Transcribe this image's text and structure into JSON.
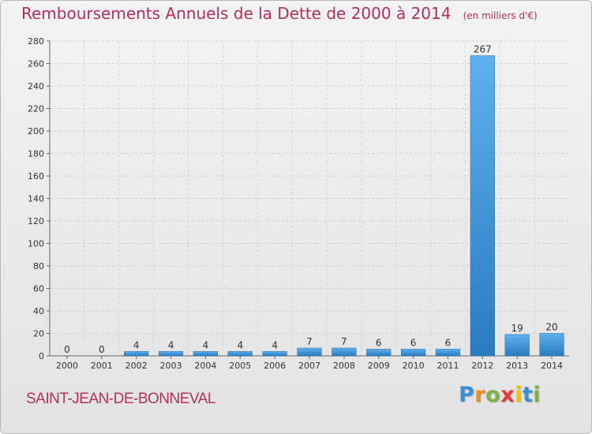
{
  "header": {
    "title": "Remboursements Annuels de la Dette de 2000 à 2014",
    "unit": "(en milliers d'€)"
  },
  "footer": {
    "commune": "SAINT-JEAN-DE-BONNEVAL",
    "logo_letters": [
      "P",
      "r",
      "o",
      "x",
      "i",
      "t",
      "i"
    ],
    "logo_colors": [
      "#3a8fd4",
      "#f28c1e",
      "#7cb342",
      "#e53935",
      "#f4c20d",
      "#3a8fd4",
      "#7cb342"
    ]
  },
  "chart_data": {
    "type": "bar",
    "title": "Remboursements Annuels de la Dette de 2000 à 2014",
    "xlabel": "",
    "ylabel": "",
    "categories": [
      "2000",
      "2001",
      "2002",
      "2003",
      "2004",
      "2005",
      "2006",
      "2007",
      "2008",
      "2009",
      "2010",
      "2011",
      "2012",
      "2013",
      "2014"
    ],
    "values": [
      0,
      0,
      4,
      4,
      4,
      4,
      4,
      7,
      7,
      6,
      6,
      6,
      267,
      19,
      20
    ],
    "data_labels": [
      "0",
      "0",
      "4",
      "4",
      "4",
      "4",
      "4",
      "7",
      "7",
      "6",
      "6",
      "6",
      "267",
      "19",
      "20"
    ],
    "ylim": [
      0,
      280
    ],
    "yticks": [
      0,
      20,
      40,
      60,
      80,
      100,
      120,
      140,
      160,
      180,
      200,
      220,
      240,
      260,
      280
    ],
    "grid": true,
    "legend": "none",
    "bar_color": "#3d8fd8"
  }
}
